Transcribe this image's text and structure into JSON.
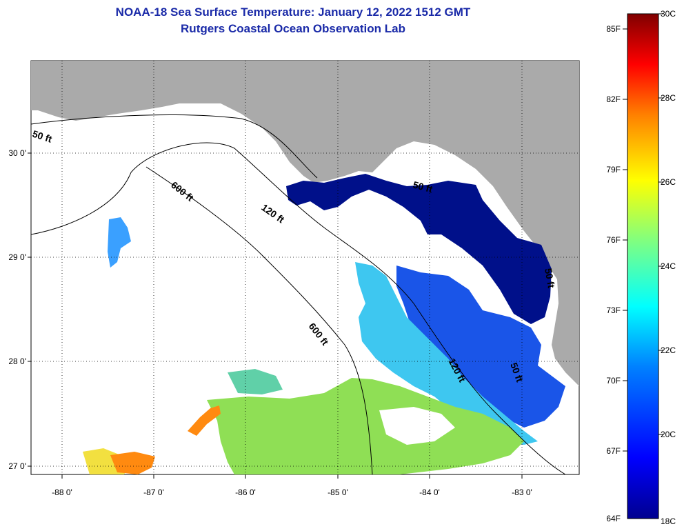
{
  "title": "NOAA-18 Sea Surface Temperature:  January 12, 2022 1512 GMT",
  "subtitle": "Rutgers Coastal Ocean Observation Lab",
  "map": {
    "x_ticks": [
      "-88 0'",
      "-87 0'",
      "-86 0'",
      "-85 0'",
      "-84 0'",
      "-83 0'"
    ],
    "y_ticks": [
      "30 0'",
      "29 0'",
      "28 0'",
      "27 0'"
    ],
    "contour_labels": [
      "50 ft",
      "600 ft",
      "120 ft",
      "600 ft",
      "120 ft",
      "50 ft",
      "50 ft",
      "50 ft"
    ],
    "colors": {
      "land": "#aaaaaa",
      "water": "#ffffff",
      "cold": "#00108a",
      "mid": "#1560ff",
      "warm": "#9be040",
      "hot": "#ff7a00"
    }
  },
  "colorbar": {
    "f_labels": [
      "85F",
      "82F",
      "79F",
      "76F",
      "73F",
      "70F",
      "67F",
      "64F"
    ],
    "c_labels": [
      "30C",
      "28C",
      "26C",
      "24C",
      "22C",
      "20C",
      "18C"
    ],
    "colors": [
      "#00008f",
      "#0000ff",
      "#0080ff",
      "#00ffff",
      "#80ff80",
      "#ffff00",
      "#ff8000",
      "#ff0000",
      "#800000"
    ]
  }
}
